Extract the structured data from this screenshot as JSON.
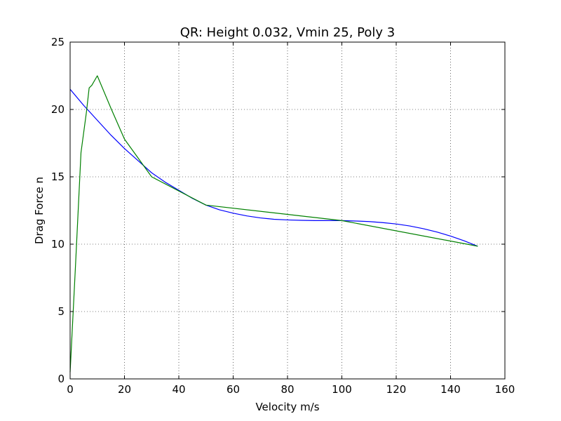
{
  "chart_data": {
    "type": "line",
    "title": "QR: Height 0.032, Vmin 25, Poly 3",
    "xlabel": "Velocity m/s",
    "ylabel": "Drag Force n",
    "xlim": [
      0,
      160
    ],
    "ylim": [
      0,
      25
    ],
    "xticks": [
      0,
      20,
      40,
      60,
      80,
      100,
      120,
      140,
      160
    ],
    "yticks": [
      0,
      5,
      10,
      15,
      20,
      25
    ],
    "grid": true,
    "legend": "none",
    "series": [
      {
        "color": "#0000ff",
        "x": [
          0,
          5,
          10,
          15,
          20,
          25,
          30,
          35,
          40,
          45,
          50,
          55,
          60,
          65,
          70,
          75,
          80,
          85,
          90,
          95,
          100,
          105,
          110,
          115,
          120,
          125,
          130,
          135,
          140,
          145,
          150
        ],
        "y": [
          21.5,
          20.3,
          19.2,
          18.1,
          17.1,
          16.2,
          15.3,
          14.6,
          14.0,
          13.4,
          12.9,
          12.55,
          12.3,
          12.1,
          11.95,
          11.85,
          11.8,
          11.77,
          11.75,
          11.75,
          11.75,
          11.72,
          11.68,
          11.6,
          11.5,
          11.35,
          11.15,
          10.9,
          10.6,
          10.25,
          9.85
        ]
      },
      {
        "color": "#008000",
        "x": [
          0,
          2,
          4,
          6,
          7,
          8,
          10,
          15,
          20,
          30,
          50,
          100,
          150
        ],
        "y": [
          0.5,
          8.5,
          16.8,
          19.8,
          21.6,
          21.8,
          22.5,
          20.1,
          17.8,
          15.0,
          12.9,
          11.75,
          9.85
        ]
      }
    ]
  }
}
